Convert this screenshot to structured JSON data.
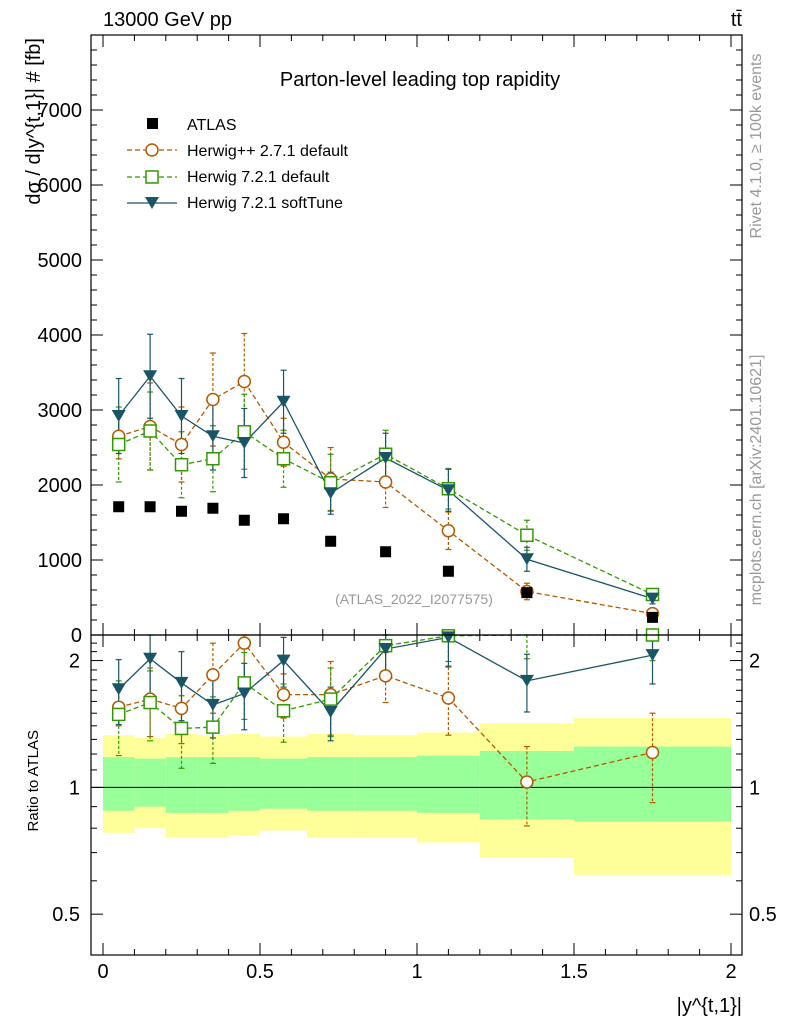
{
  "header": {
    "energy_label": "13000 GeV pp",
    "process_label": "tt̄"
  },
  "side": {
    "rivet_label": "Rivet 4.1.0, ≥ 100k events",
    "mcplots_label": "mcplots.cern.ch [arXiv:2401.10621]"
  },
  "chart_data": {
    "type": "scatter",
    "title": "Parton-level leading top rapidity",
    "analysis_id": "(ATLAS_2022_I2077575)",
    "xlabel": "|y^{t,1}|",
    "ylabel": "dσ / d|y^{t,1}| # [fb]",
    "ratio_ylabel": "Ratio to ATLAS",
    "xlim": [
      0,
      2
    ],
    "ylim": [
      0,
      8000
    ],
    "ratio_ylim": [
      0.4,
      2.3
    ],
    "ratio_scale": "log",
    "x_ticks": [
      "0",
      "0.5",
      "1",
      "1.5",
      "2"
    ],
    "y_ticks": [
      "0",
      "1000",
      "2000",
      "3000",
      "4000",
      "5000",
      "6000",
      "7000"
    ],
    "ratio_ticks": [
      "0.5",
      "1",
      "2"
    ],
    "bin_edges": [
      0.0,
      0.1,
      0.2,
      0.3,
      0.4,
      0.5,
      0.65,
      0.8,
      1.0,
      1.2,
      1.5,
      2.0
    ],
    "x": [
      0.05,
      0.15,
      0.25,
      0.35,
      0.45,
      0.575,
      0.725,
      0.9,
      1.1,
      1.35,
      1.75
    ],
    "data_series": {
      "name": "ATLAS",
      "values": [
        1710,
        1710,
        1650,
        1690,
        1530,
        1550,
        1250,
        1110,
        850,
        565,
        235
      ]
    },
    "band_inner_up": [
      1.18,
      1.17,
      1.18,
      1.18,
      1.18,
      1.17,
      1.18,
      1.18,
      1.19,
      1.22,
      1.25
    ],
    "band_inner_down": [
      0.88,
      0.9,
      0.87,
      0.87,
      0.88,
      0.89,
      0.88,
      0.88,
      0.87,
      0.84,
      0.83
    ],
    "band_outer_up": [
      1.33,
      1.31,
      1.34,
      1.33,
      1.34,
      1.32,
      1.34,
      1.33,
      1.35,
      1.42,
      1.46
    ],
    "band_outer_down": [
      0.78,
      0.8,
      0.76,
      0.76,
      0.77,
      0.79,
      0.76,
      0.76,
      0.74,
      0.68,
      0.62
    ],
    "series": [
      {
        "name": "Herwig++ 2.7.1 default",
        "color": "#b35900",
        "marker": "open-circle",
        "line": "dashed",
        "values": [
          2650,
          2780,
          2540,
          3140,
          3380,
          2570,
          2080,
          2040,
          1390,
          580,
          285
        ],
        "err": [
          300,
          580,
          500,
          620,
          640,
          320,
          420,
          340,
          250,
          110,
          60
        ],
        "ratio": [
          1.55,
          1.62,
          1.54,
          1.85,
          2.2,
          1.66,
          1.66,
          1.84,
          1.63,
          1.03,
          1.21
        ],
        "ratio_err": [
          0.15,
          0.3,
          0.27,
          0.35,
          0.42,
          0.2,
          0.33,
          0.25,
          0.3,
          0.22,
          0.29
        ]
      },
      {
        "name": "Herwig 7.2.1 default",
        "color": "#339900",
        "marker": "open-square",
        "line": "dashed",
        "values": [
          2540,
          2720,
          2270,
          2350,
          2710,
          2350,
          2030,
          2410,
          1950,
          1330,
          540
        ],
        "err": [
          500,
          520,
          440,
          440,
          500,
          380,
          380,
          320,
          270,
          200,
          70
        ],
        "ratio": [
          1.49,
          1.59,
          1.38,
          1.39,
          1.77,
          1.52,
          1.62,
          2.17,
          2.29,
          2.35,
          2.3
        ],
        "ratio_err": [
          0.3,
          0.3,
          0.27,
          0.25,
          0.32,
          0.24,
          0.3,
          0.28,
          0.3,
          0.33,
          0.3
        ]
      },
      {
        "name": "Herwig 7.2.1 softTune",
        "color": "#1a5566",
        "marker": "filled-triangle-down",
        "line": "solid",
        "values": [
          2920,
          3450,
          2920,
          2650,
          2560,
          3110,
          1890,
          2360,
          1930,
          1010,
          485
        ],
        "err": [
          500,
          560,
          500,
          450,
          460,
          420,
          280,
          330,
          280,
          160,
          70
        ],
        "ratio": [
          1.71,
          2.02,
          1.77,
          1.57,
          1.67,
          2.0,
          1.51,
          2.13,
          2.27,
          1.79,
          2.06
        ],
        "ratio_err": [
          0.3,
          0.35,
          0.33,
          0.26,
          0.3,
          0.27,
          0.22,
          0.29,
          0.33,
          0.28,
          0.3
        ]
      }
    ]
  }
}
